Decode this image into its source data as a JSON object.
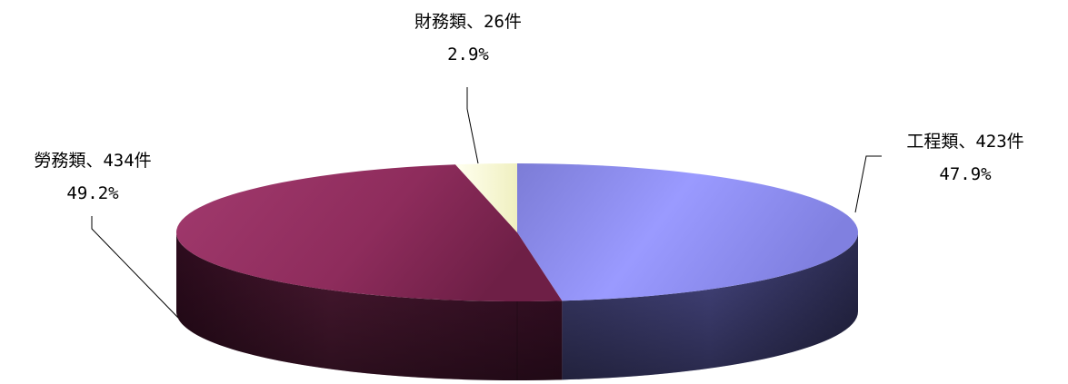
{
  "chart_data": {
    "type": "pie",
    "style": "3d",
    "slices": [
      {
        "name": "工程類",
        "count": 423,
        "unit": "件",
        "percent": 47.9,
        "label": "工程類、423件",
        "pct_label": "47.9%",
        "color": "#9999ff"
      },
      {
        "name": "勞務類",
        "count": 434,
        "unit": "件",
        "percent": 49.2,
        "label": "勞務類、434件",
        "pct_label": "49.2%",
        "color": "#993366"
      },
      {
        "name": "財務類",
        "count": 26,
        "unit": "件",
        "percent": 2.9,
        "label": "財務類、26件",
        "pct_label": "2.9%",
        "color": "#ffffcc"
      }
    ],
    "legend": "none"
  }
}
